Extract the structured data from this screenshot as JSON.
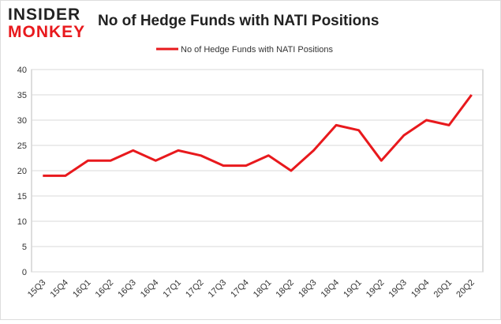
{
  "logo": {
    "line1": "INSIDER",
    "line2": "MONKEY"
  },
  "chart_data": {
    "type": "line",
    "title": "No of Hedge Funds with NATI Positions",
    "categories": [
      "15Q3",
      "15Q4",
      "16Q1",
      "16Q2",
      "16Q3",
      "16Q4",
      "17Q1",
      "17Q2",
      "17Q3",
      "17Q4",
      "18Q1",
      "18Q2",
      "18Q3",
      "18Q4",
      "19Q1",
      "19Q2",
      "19Q3",
      "19Q4",
      "20Q1",
      "20Q2"
    ],
    "series": [
      {
        "name": "No of Hedge Funds with NATI Positions",
        "color": "#e8191d",
        "values": [
          19,
          19,
          22,
          22,
          24,
          22,
          24,
          23,
          21,
          21,
          23,
          20,
          24,
          29,
          28,
          22,
          27,
          30,
          29,
          35
        ]
      }
    ],
    "ylim": [
      0,
      40
    ],
    "yticks": [
      0,
      5,
      10,
      15,
      20,
      25,
      30,
      35,
      40
    ],
    "grid": true,
    "legend": "top"
  }
}
